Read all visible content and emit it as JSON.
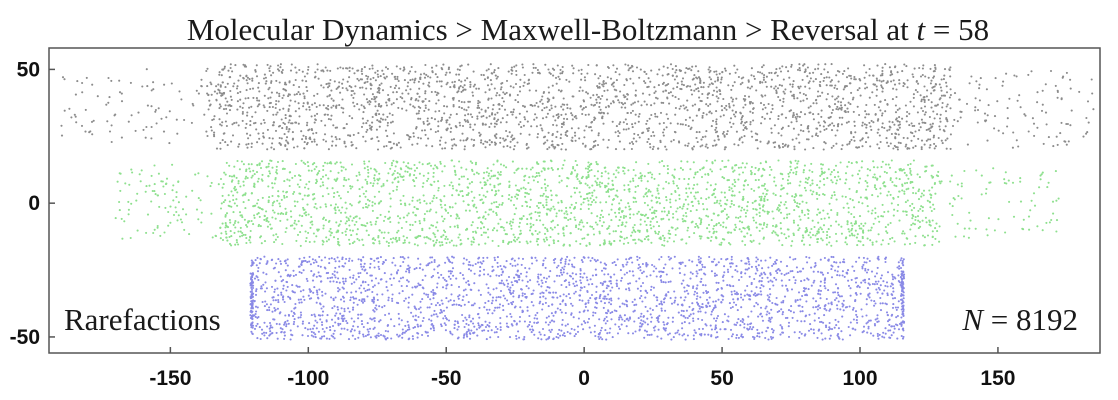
{
  "chart_data": {
    "type": "scatter",
    "title_parts": {
      "prefix": "Molecular Dynamics > Maxwell-Boltzmann > Reversal at ",
      "var": "t",
      "suffix": " = 58"
    },
    "xlabel": "",
    "ylabel": "",
    "xlim": [
      -194,
      187
    ],
    "ylim": [
      -56,
      58
    ],
    "x_ticks": [
      -150,
      -100,
      -50,
      0,
      50,
      100,
      150
    ],
    "y_ticks": [
      -50,
      0,
      50
    ],
    "x_tick_labels": [
      "-150",
      "-100",
      "-50",
      "0",
      "50",
      "100",
      "150"
    ],
    "y_tick_labels": [
      "-50",
      "0",
      "50"
    ],
    "grid": false,
    "legend": "none",
    "series": [
      {
        "color": "#8c8c8c",
        "y_range": [
          20,
          52
        ],
        "core_x_range": [
          -137,
          133
        ],
        "tail_x_range": [
          -190,
          185
        ],
        "points": 8192
      },
      {
        "color": "#8ee08e",
        "y_range": [
          -16,
          16
        ],
        "core_x_range": [
          -132,
          128
        ],
        "tail_x_range": [
          -170,
          172
        ],
        "points": 8192
      },
      {
        "color": "#8a8ae6",
        "y_range": [
          -51,
          -20
        ],
        "core_x_range": [
          -120,
          115
        ],
        "tail_x_range": [
          -121,
          116
        ],
        "points": 8192
      }
    ],
    "annotations": {
      "left_label": "Rarefactions",
      "right_var": "N",
      "right_suffix": " = 8192"
    }
  }
}
